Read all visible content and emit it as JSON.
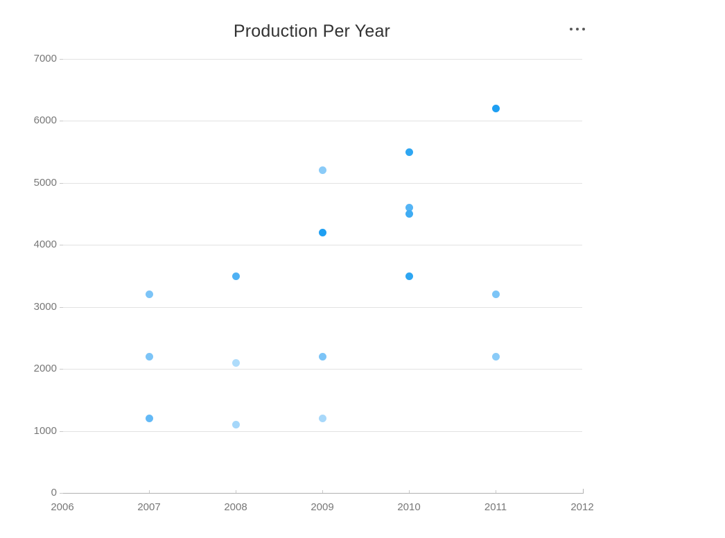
{
  "header": {
    "more_options_icon": "ellipsis-horizontal-icon"
  },
  "colors": {
    "background": "#FFFFFF",
    "title": "#333333",
    "axis_label": "#777777",
    "grid_line": "#E2E2E2",
    "axis_line": "#B0B0B0",
    "tick": "#C9C9C9",
    "more_options_dots": "#5A5A5A",
    "point_blue_strong": "#1E9FF2",
    "point_blue_light": "#7CC4F7",
    "point_blue_pale": "#AEDCFB"
  },
  "chart_data": {
    "type": "scatter",
    "title": "Production Per Year",
    "xlabel": "",
    "ylabel": "",
    "xlim": [
      2006,
      2012
    ],
    "ylim": [
      0,
      7000
    ],
    "x_ticks": [
      2006,
      2007,
      2008,
      2009,
      2010,
      2011,
      2012
    ],
    "y_ticks": [
      0,
      1000,
      2000,
      3000,
      4000,
      5000,
      6000,
      7000
    ],
    "grid": true,
    "legend": false,
    "points": [
      {
        "x": 2007,
        "y": 3200,
        "color": "#7CC4F7"
      },
      {
        "x": 2007,
        "y": 2200,
        "color": "#7CC4F7"
      },
      {
        "x": 2007,
        "y": 1200,
        "color": "#63B9F6"
      },
      {
        "x": 2008,
        "y": 3500,
        "color": "#4FB1F4"
      },
      {
        "x": 2008,
        "y": 2100,
        "color": "#AEDCFB"
      },
      {
        "x": 2008,
        "y": 1100,
        "color": "#A5D7FA"
      },
      {
        "x": 2009,
        "y": 5200,
        "color": "#8ACBF8"
      },
      {
        "x": 2009,
        "y": 4200,
        "color": "#1E9FF2"
      },
      {
        "x": 2009,
        "y": 2200,
        "color": "#7CC4F7"
      },
      {
        "x": 2009,
        "y": 1200,
        "color": "#A8D8FA"
      },
      {
        "x": 2010,
        "y": 5500,
        "color": "#2EA6F2"
      },
      {
        "x": 2010,
        "y": 4600,
        "color": "#54B4F5"
      },
      {
        "x": 2010,
        "y": 4500,
        "color": "#3FACF3"
      },
      {
        "x": 2010,
        "y": 3500,
        "color": "#2EA6F2"
      },
      {
        "x": 2011,
        "y": 6200,
        "color": "#1E9FF2"
      },
      {
        "x": 2011,
        "y": 3200,
        "color": "#7CC5F7"
      },
      {
        "x": 2011,
        "y": 2200,
        "color": "#8ACBF8"
      }
    ]
  }
}
